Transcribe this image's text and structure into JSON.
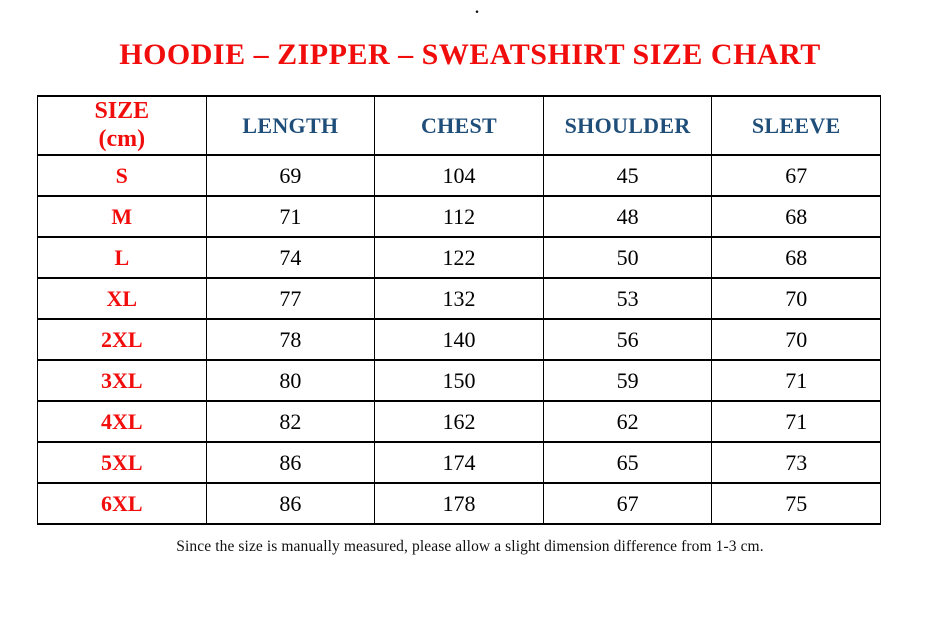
{
  "page": {
    "top_mark": ".",
    "title": "HOODIE – ZIPPER – SWEATSHIRT SIZE CHART",
    "footnote": "Since the size is manually measured, please allow a slight dimension difference from 1-3 cm."
  },
  "colors": {
    "title_red": "#f20d0d",
    "size_label_red": "#f20d0d",
    "header_navy": "#1f4e79",
    "value_black": "#000000",
    "border_black": "#000000",
    "background": "#ffffff"
  },
  "table": {
    "header": {
      "size_label_line1": "SIZE",
      "size_label_line2": "(cm)",
      "cols": [
        "LENGTH",
        "CHEST",
        "SHOULDER",
        "SLEEVE"
      ]
    },
    "rows": [
      {
        "size": "S",
        "values": [
          "69",
          "104",
          "45",
          "67"
        ]
      },
      {
        "size": "M",
        "values": [
          "71",
          "112",
          "48",
          "68"
        ]
      },
      {
        "size": "L",
        "values": [
          "74",
          "122",
          "50",
          "68"
        ]
      },
      {
        "size": "XL",
        "values": [
          "77",
          "132",
          "53",
          "70"
        ]
      },
      {
        "size": "2XL",
        "values": [
          "78",
          "140",
          "56",
          "70"
        ]
      },
      {
        "size": "3XL",
        "values": [
          "80",
          "150",
          "59",
          "71"
        ]
      },
      {
        "size": "4XL",
        "values": [
          "82",
          "162",
          "62",
          "71"
        ]
      },
      {
        "size": "5XL",
        "values": [
          "86",
          "174",
          "65",
          "73"
        ]
      },
      {
        "size": "6XL",
        "values": [
          "86",
          "178",
          "67",
          "75"
        ]
      }
    ]
  },
  "chart_data": {
    "type": "table",
    "title": "HOODIE – ZIPPER – SWEATSHIRT SIZE CHART",
    "columns": [
      "SIZE (cm)",
      "LENGTH",
      "CHEST",
      "SHOULDER",
      "SLEEVE"
    ],
    "rows": [
      [
        "S",
        69,
        104,
        45,
        67
      ],
      [
        "M",
        71,
        112,
        48,
        68
      ],
      [
        "L",
        74,
        122,
        50,
        68
      ],
      [
        "XL",
        77,
        132,
        53,
        70
      ],
      [
        "2XL",
        78,
        140,
        56,
        70
      ],
      [
        "3XL",
        80,
        150,
        59,
        71
      ],
      [
        "4XL",
        82,
        162,
        62,
        71
      ],
      [
        "5XL",
        86,
        174,
        65,
        73
      ],
      [
        "6XL",
        86,
        178,
        67,
        75
      ]
    ],
    "footnote": "Since the size is manually measured, please allow a slight dimension difference from 1-3 cm."
  }
}
